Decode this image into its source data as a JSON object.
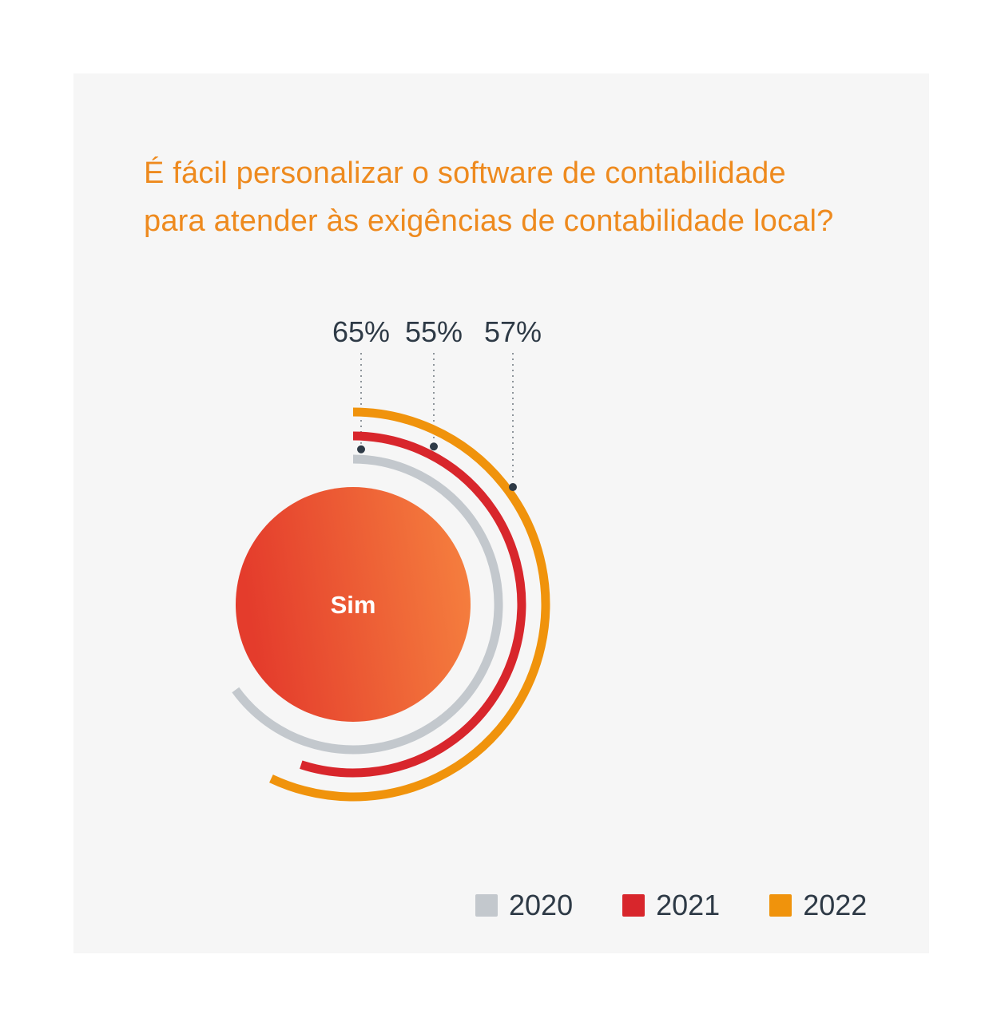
{
  "page": {
    "background": "#ffffff",
    "card_background": "#f6f6f6"
  },
  "title": {
    "text": "É fácil personalizar o software de contabilidade para atender às exigências de contabilidade local?",
    "lines": [
      "É fácil personalizar o software de contabilidade",
      "para atender às exigências de contabilidade local?"
    ],
    "color": "#ee8a1e"
  },
  "chart_data": {
    "type": "radial-bar",
    "title": "É fácil personalizar o software de contabilidade para atender às exigências de contabilidade local?",
    "unit": "%",
    "center_label": "Sim",
    "center_gradient": [
      "#e43c2c",
      "#f6823f"
    ],
    "center_label_color": "#ffffff",
    "categories": [
      "2020",
      "2021",
      "2022"
    ],
    "series": [
      {
        "name": "2020",
        "value": 65,
        "label": "65%",
        "color": "#c3c8cd"
      },
      {
        "name": "2021",
        "value": 55,
        "label": "55%",
        "color": "#d8262c"
      },
      {
        "name": "2022",
        "value": 57,
        "label": "57%",
        "color": "#f0930c"
      }
    ],
    "value_label_color": "#2e3a46",
    "leader_line_color": "#8e959b",
    "angle_start": "12-oclock",
    "direction": "clockwise",
    "value_range": [
      0,
      100
    ],
    "grid": false,
    "legend_position": "bottom-right"
  },
  "legend": {
    "items": [
      {
        "label": "2020",
        "color": "#c3c8cd"
      },
      {
        "label": "2021",
        "color": "#d8262c"
      },
      {
        "label": "2022",
        "color": "#f0930c"
      }
    ]
  }
}
